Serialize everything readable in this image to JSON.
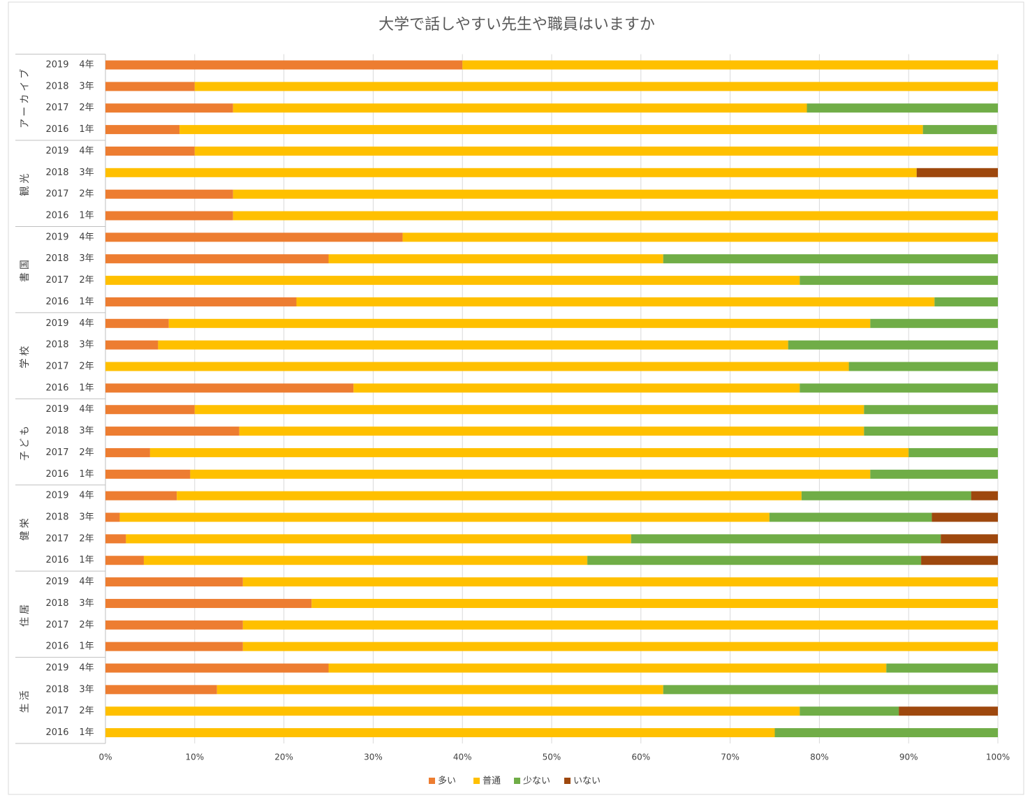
{
  "chart_data": {
    "type": "stacked-barh",
    "title": "大学で話しやすい先生や職員はいますか",
    "groups": [
      "アーカイブ",
      "観光",
      "書国",
      "学校",
      "子ども",
      "健栄",
      "住居",
      "生活"
    ],
    "categories": [
      "2019",
      "2018",
      "2017",
      "2016",
      "2019",
      "2018",
      "2017",
      "2016",
      "2019",
      "2018",
      "2017",
      "2016",
      "2019",
      "2018",
      "2017",
      "2016",
      "2019",
      "2018",
      "2017",
      "2016",
      "2019",
      "2018",
      "2017",
      "2016",
      "2019",
      "2018",
      "2017",
      "2016",
      "2019",
      "2018",
      "2017",
      "2016"
    ],
    "grades": [
      "4年",
      "3年",
      "2年",
      "1年",
      "4年",
      "3年",
      "2年",
      "1年",
      "4年",
      "3年",
      "2年",
      "1年",
      "4年",
      "3年",
      "2年",
      "1年",
      "4年",
      "3年",
      "2年",
      "1年",
      "4年",
      "3年",
      "2年",
      "1年",
      "4年",
      "3年",
      "2年",
      "1年",
      "4年",
      "3年",
      "2年",
      "1年"
    ],
    "series": [
      {
        "name": "多い",
        "color": "#ED7D31",
        "values": [
          40,
          10,
          14.3,
          8.3,
          10,
          0,
          14.3,
          14.3,
          33.3,
          25,
          0,
          21.4,
          7.1,
          5.9,
          0,
          27.8,
          10,
          15,
          5,
          9.5,
          8,
          1.6,
          2.3,
          4.3,
          15.4,
          23.1,
          15.4,
          15.4,
          25,
          12.5,
          0,
          0
        ]
      },
      {
        "name": "普通",
        "color": "#FFC000",
        "values": [
          60,
          90,
          64.3,
          83.3,
          90,
          90.9,
          85.7,
          85.7,
          66.7,
          37.5,
          77.8,
          71.5,
          78.6,
          70.6,
          83.3,
          50,
          75,
          70,
          85,
          76.2,
          70,
          72.8,
          56.6,
          49.7,
          84.6,
          76.9,
          84.6,
          84.6,
          62.5,
          50,
          77.8,
          75
        ]
      },
      {
        "name": "少ない",
        "color": "#70AD47",
        "values": [
          0,
          0,
          21.4,
          8.3,
          0,
          0,
          0,
          0,
          0,
          37.5,
          22.2,
          7.1,
          14.3,
          23.5,
          16.7,
          22.2,
          15,
          15,
          10,
          14.3,
          19,
          18.2,
          34.7,
          37.4,
          0,
          0,
          0,
          0,
          12.5,
          37.5,
          11.1,
          25
        ]
      },
      {
        "name": "いない",
        "color": "#9E480E",
        "values": [
          0,
          0,
          0,
          0,
          0,
          9.1,
          0,
          0,
          0,
          0,
          0,
          0,
          0,
          0,
          0,
          0,
          0,
          0,
          0,
          0,
          3,
          7.4,
          6.4,
          8.6,
          0,
          0,
          0,
          0,
          0,
          0,
          11.1,
          0
        ]
      }
    ],
    "xlim": [
      0,
      100
    ],
    "xticks": [
      {
        "value": 0,
        "label": "0%"
      },
      {
        "value": 10,
        "label": "10%"
      },
      {
        "value": 20,
        "label": "20%"
      },
      {
        "value": 30,
        "label": "30%"
      },
      {
        "value": 40,
        "label": "40%"
      },
      {
        "value": 50,
        "label": "50%"
      },
      {
        "value": 60,
        "label": "60%"
      },
      {
        "value": 70,
        "label": "70%"
      },
      {
        "value": 80,
        "label": "80%"
      },
      {
        "value": 90,
        "label": "90%"
      },
      {
        "value": 100,
        "label": "100%"
      }
    ],
    "grid": true,
    "legend": "bottom"
  }
}
